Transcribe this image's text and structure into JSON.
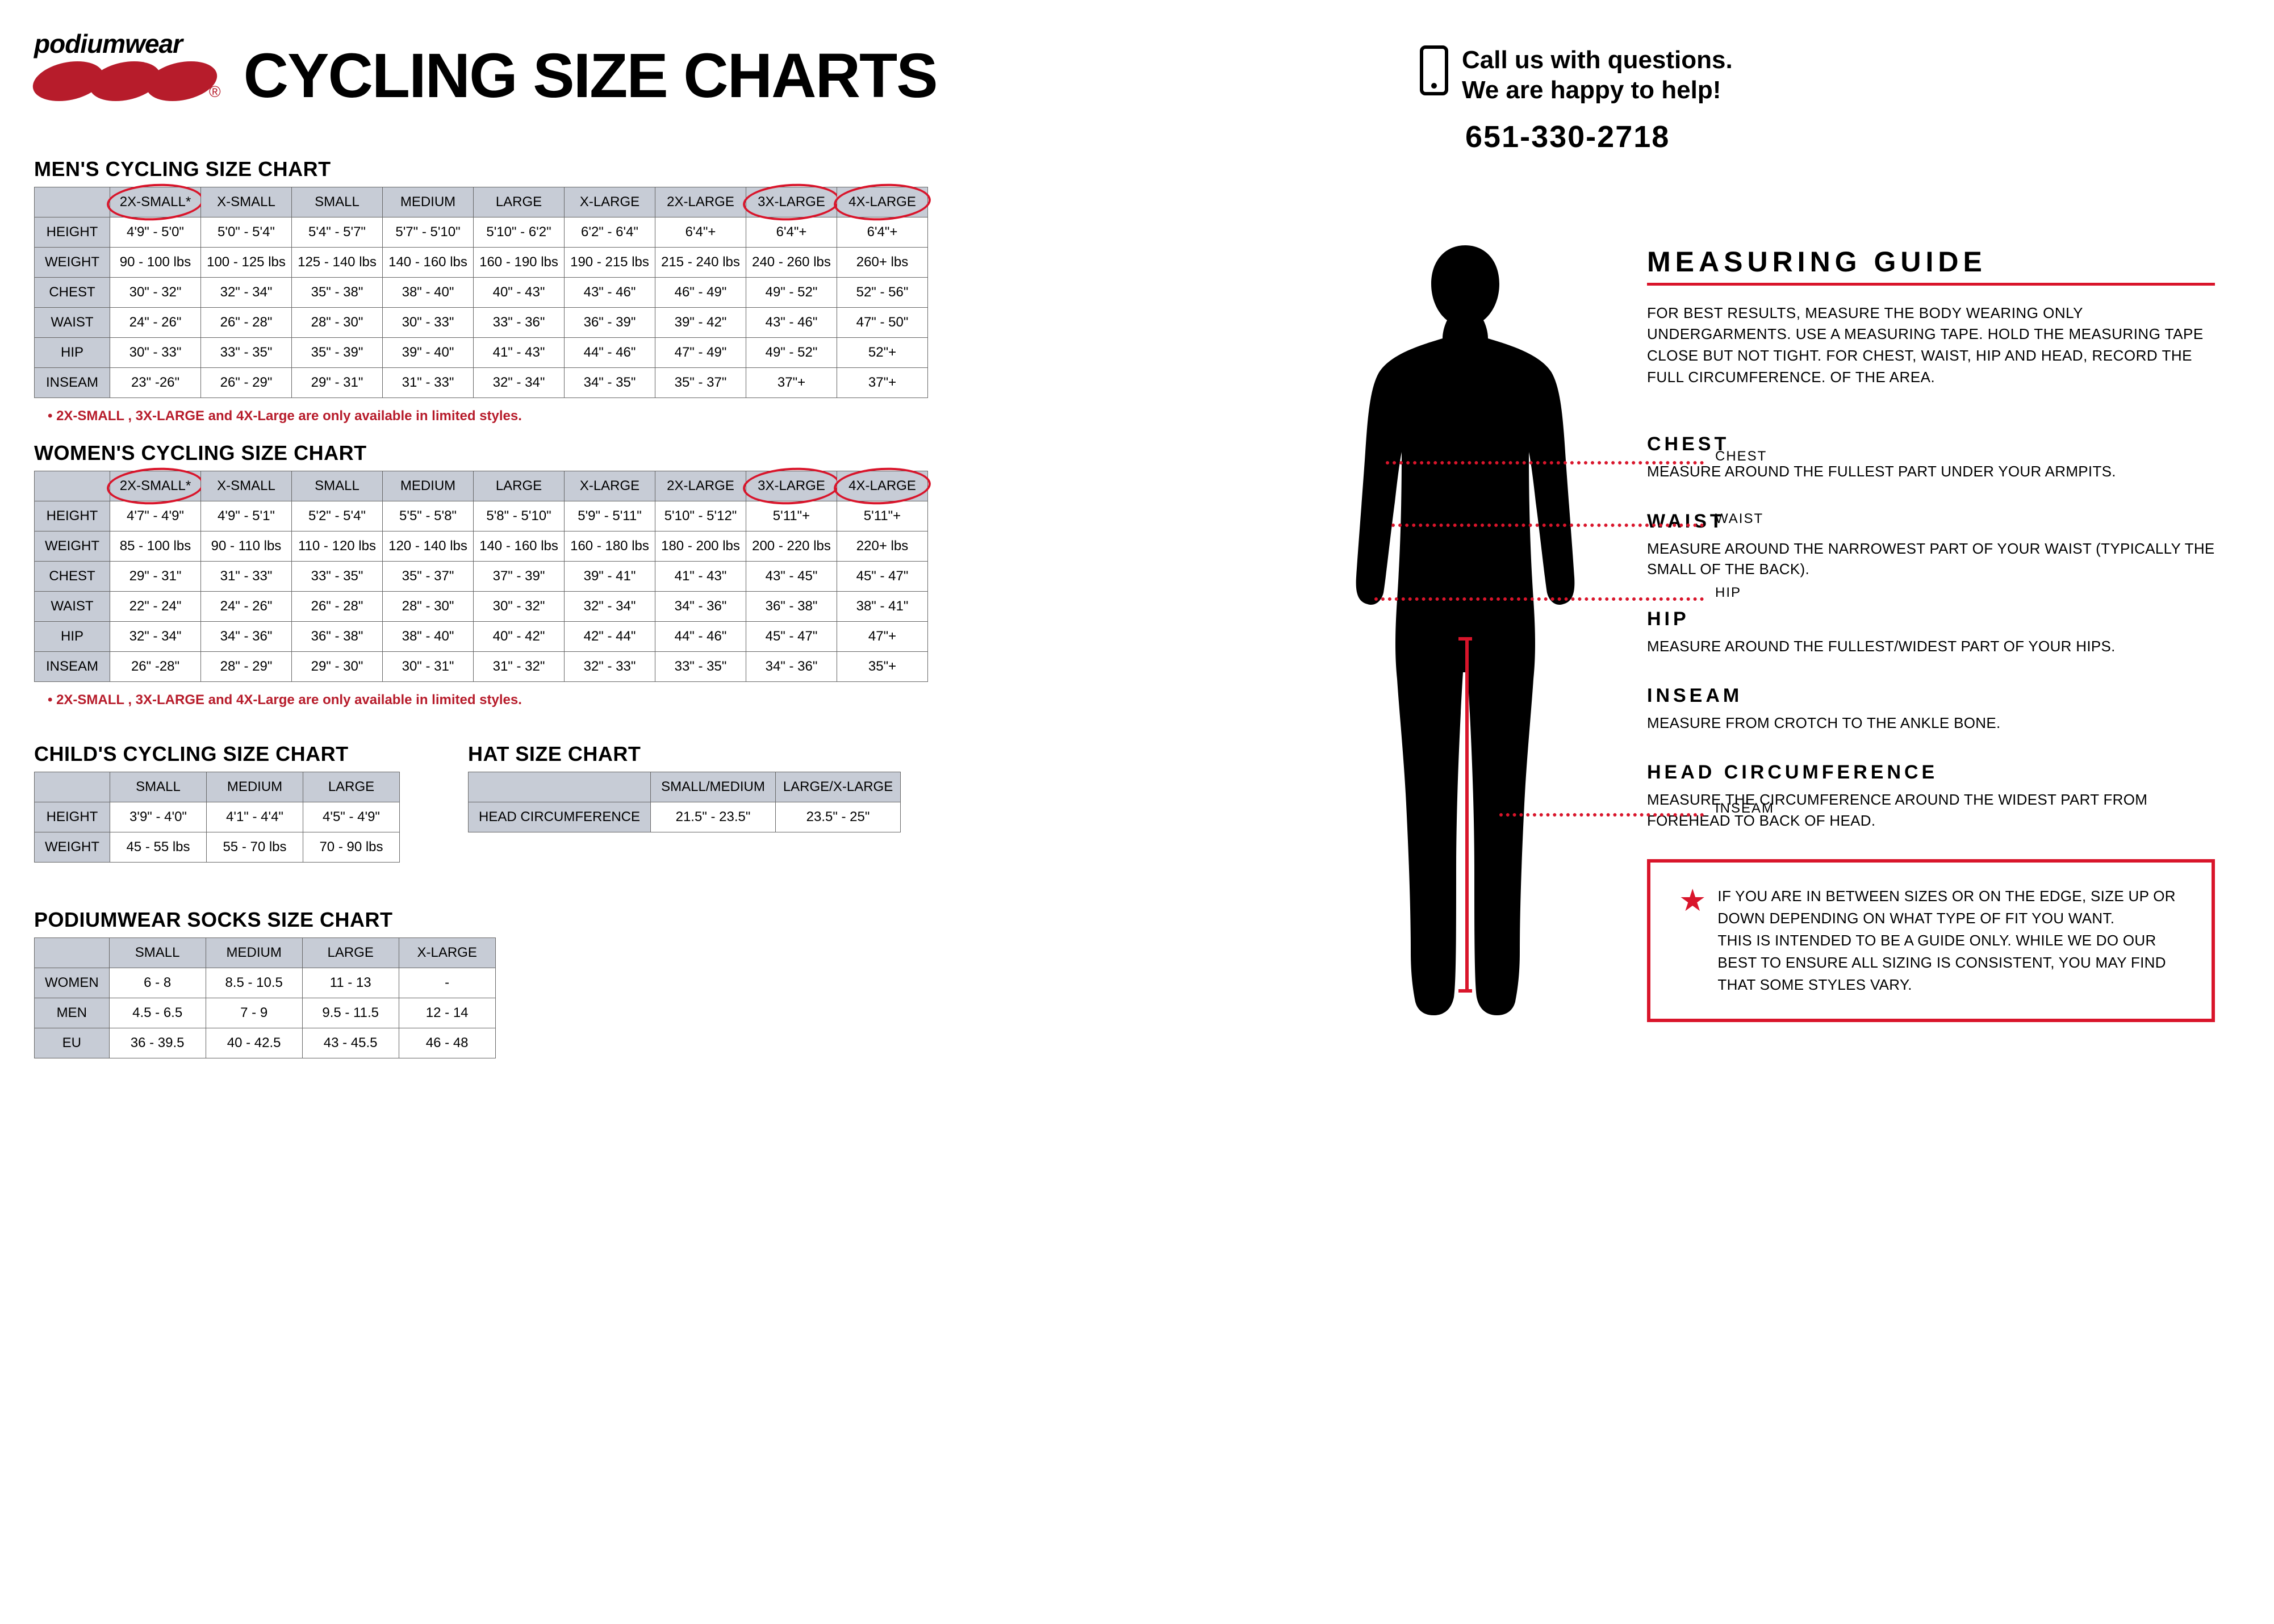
{
  "logo": {
    "brand": "podiumwear"
  },
  "title": "CYCLING SIZE CHARTS",
  "call": {
    "line1": "Call us with questions.",
    "line2": "We are happy to help!",
    "phone": "651-330-2718"
  },
  "mens": {
    "title": "MEN'S CYCLING SIZE CHART",
    "sizes": [
      "2X-SMALL*",
      "X-SMALL",
      "SMALL",
      "MEDIUM",
      "LARGE",
      "X-LARGE",
      "2X-LARGE",
      "3X-LARGE",
      "4X-LARGE"
    ],
    "circled": [
      0,
      7,
      8
    ],
    "rows": [
      {
        "h": "HEIGHT",
        "v": [
          "4'9\" - 5'0\"",
          "5'0\" - 5'4\"",
          "5'4\" - 5'7\"",
          "5'7\" - 5'10\"",
          "5'10\" - 6'2\"",
          "6'2\" - 6'4\"",
          "6'4\"+",
          "6'4\"+",
          "6'4\"+"
        ]
      },
      {
        "h": "WEIGHT",
        "v": [
          "90 - 100 lbs",
          "100 - 125 lbs",
          "125 - 140 lbs",
          "140 - 160 lbs",
          "160 - 190 lbs",
          "190 - 215 lbs",
          "215 - 240 lbs",
          "240 - 260 lbs",
          "260+ lbs"
        ]
      },
      {
        "h": "CHEST",
        "v": [
          "30\" - 32\"",
          "32\" - 34\"",
          "35\" - 38\"",
          "38\" - 40\"",
          "40\" - 43\"",
          "43\" - 46\"",
          "46\" - 49\"",
          "49\" - 52\"",
          "52\" - 56\""
        ]
      },
      {
        "h": "WAIST",
        "v": [
          "24\" - 26\"",
          "26\" - 28\"",
          "28\" - 30\"",
          "30\" - 33\"",
          "33\" - 36\"",
          "36\" - 39\"",
          "39\" - 42\"",
          "43\" - 46\"",
          "47\" - 50\""
        ]
      },
      {
        "h": "HIP",
        "v": [
          "30\" - 33\"",
          "33\" - 35\"",
          "35\" - 39\"",
          "39\" - 40\"",
          "41\" - 43\"",
          "44\" - 46\"",
          "47\" - 49\"",
          "49\" - 52\"",
          "52\"+"
        ]
      },
      {
        "h": "INSEAM",
        "v": [
          "23\" -26\"",
          "26\" - 29\"",
          "29\" - 31\"",
          "31\" - 33\"",
          "32\" - 34\"",
          "34\" - 35\"",
          "35\" - 37\"",
          "37\"+",
          "37\"+"
        ]
      }
    ],
    "note": "2X-SMALL , 3X-LARGE and 4X-Large are only available in limited styles."
  },
  "womens": {
    "title": "WOMEN'S CYCLING SIZE CHART",
    "sizes": [
      "2X-SMALL*",
      "X-SMALL",
      "SMALL",
      "MEDIUM",
      "LARGE",
      "X-LARGE",
      "2X-LARGE",
      "3X-LARGE",
      "4X-LARGE"
    ],
    "circled": [
      0,
      7,
      8
    ],
    "rows": [
      {
        "h": "HEIGHT",
        "v": [
          "4'7\" - 4'9\"",
          "4'9\" - 5'1\"",
          "5'2\" - 5'4\"",
          "5'5\" - 5'8\"",
          "5'8\" - 5'10\"",
          "5'9\" - 5'11\"",
          "5'10\" - 5'12\"",
          "5'11\"+",
          "5'11\"+"
        ]
      },
      {
        "h": "WEIGHT",
        "v": [
          "85 - 100 lbs",
          "90 - 110 lbs",
          "110 - 120 lbs",
          "120 - 140 lbs",
          "140 - 160 lbs",
          "160 - 180 lbs",
          "180 - 200 lbs",
          "200 - 220 lbs",
          "220+ lbs"
        ]
      },
      {
        "h": "CHEST",
        "v": [
          "29\" - 31\"",
          "31\" - 33\"",
          "33\" - 35\"",
          "35\" - 37\"",
          "37\" - 39\"",
          "39\" - 41\"",
          "41\" - 43\"",
          "43\" - 45\"",
          "45\" - 47\""
        ]
      },
      {
        "h": "WAIST",
        "v": [
          "22\" - 24\"",
          "24\" - 26\"",
          "26\" - 28\"",
          "28\" - 30\"",
          "30\" - 32\"",
          "32\" - 34\"",
          "34\" - 36\"",
          "36\" - 38\"",
          "38\" - 41\""
        ]
      },
      {
        "h": "HIP",
        "v": [
          "32\" - 34\"",
          "34\" - 36\"",
          "36\" - 38\"",
          "38\" - 40\"",
          "40\" - 42\"",
          "42\" - 44\"",
          "44\" - 46\"",
          "45\" - 47\"",
          "47\"+"
        ]
      },
      {
        "h": "INSEAM",
        "v": [
          "26\" -28\"",
          "28\" - 29\"",
          "29\" - 30\"",
          "30\" - 31\"",
          "31\" - 32\"",
          "32\" - 33\"",
          "33\" - 35\"",
          "34\" - 36\"",
          "35\"+"
        ]
      }
    ],
    "note": "2X-SMALL , 3X-LARGE and 4X-Large are only available in limited styles."
  },
  "child": {
    "title": "CHILD'S CYCLING SIZE CHART",
    "sizes": [
      "SMALL",
      "MEDIUM",
      "LARGE"
    ],
    "rows": [
      {
        "h": "HEIGHT",
        "v": [
          "3'9\" - 4'0\"",
          "4'1\" - 4'4\"",
          "4'5\" - 4'9\""
        ]
      },
      {
        "h": "WEIGHT",
        "v": [
          "45 - 55 lbs",
          "55 - 70 lbs",
          "70 - 90 lbs"
        ]
      }
    ]
  },
  "hat": {
    "title": "HAT SIZE CHART",
    "sizes": [
      "SMALL/MEDIUM",
      "LARGE/X-LARGE"
    ],
    "rows": [
      {
        "h": "HEAD CIRCUMFERENCE",
        "v": [
          "21.5\" - 23.5\"",
          "23.5\" - 25\""
        ]
      }
    ]
  },
  "socks": {
    "title": "PODIUMWEAR SOCKS SIZE CHART",
    "sizes": [
      "SMALL",
      "MEDIUM",
      "LARGE",
      "X-LARGE"
    ],
    "rows": [
      {
        "h": "WOMEN",
        "v": [
          "6 - 8",
          "8.5 - 10.5",
          "11 - 13",
          "-"
        ]
      },
      {
        "h": "MEN",
        "v": [
          "4.5 - 6.5",
          "7 - 9",
          "9.5 - 11.5",
          "12 - 14"
        ]
      },
      {
        "h": "EU",
        "v": [
          "36 - 39.5",
          "40 - 42.5",
          "43 - 45.5",
          "46 - 48"
        ]
      }
    ]
  },
  "markers": {
    "chest": "CHEST",
    "waist": "WAIST",
    "hip": "HIP",
    "inseam": "INSEAM"
  },
  "guide": {
    "title": "MEASURING GUIDE",
    "intro": "FOR BEST RESULTS, MEASURE THE BODY WEARING ONLY UNDERGARMENTS.  USE A MEASURING TAPE. HOLD THE MEASURING TAPE CLOSE BUT NOT TIGHT. FOR CHEST, WAIST, HIP AND HEAD, RECORD THE FULL CIRCUMFERENCE. OF THE AREA.",
    "sections": [
      {
        "h": "CHEST",
        "p": "MEASURE AROUND THE FULLEST PART UNDER YOUR ARMPITS."
      },
      {
        "h": "WAIST",
        "p": "MEASURE AROUND THE NARROWEST PART OF YOUR WAIST (TYPICALLY THE SMALL OF THE BACK)."
      },
      {
        "h": "HIP",
        "p": "MEASURE AROUND THE FULLEST/WIDEST PART OF YOUR HIPS."
      },
      {
        "h": "INSEAM",
        "p": "MEASURE FROM CROTCH TO THE ANKLE BONE."
      },
      {
        "h": "HEAD CIRCUMFERENCE",
        "p": "MEASURE THE CIRCUMFERENCE AROUND THE WIDEST PART FROM FOREHEAD TO BACK OF HEAD."
      }
    ]
  },
  "callout": "IF YOU ARE IN BETWEEN SIZES OR ON THE EDGE, SIZE UP OR DOWN DEPENDING ON WHAT TYPE OF FIT YOU WANT.\nTHIS IS INTENDED TO BE A GUIDE ONLY.  WHILE WE DO OUR BEST TO ENSURE ALL SIZING IS CONSISTENT, YOU MAY FIND THAT SOME STYLES VARY."
}
